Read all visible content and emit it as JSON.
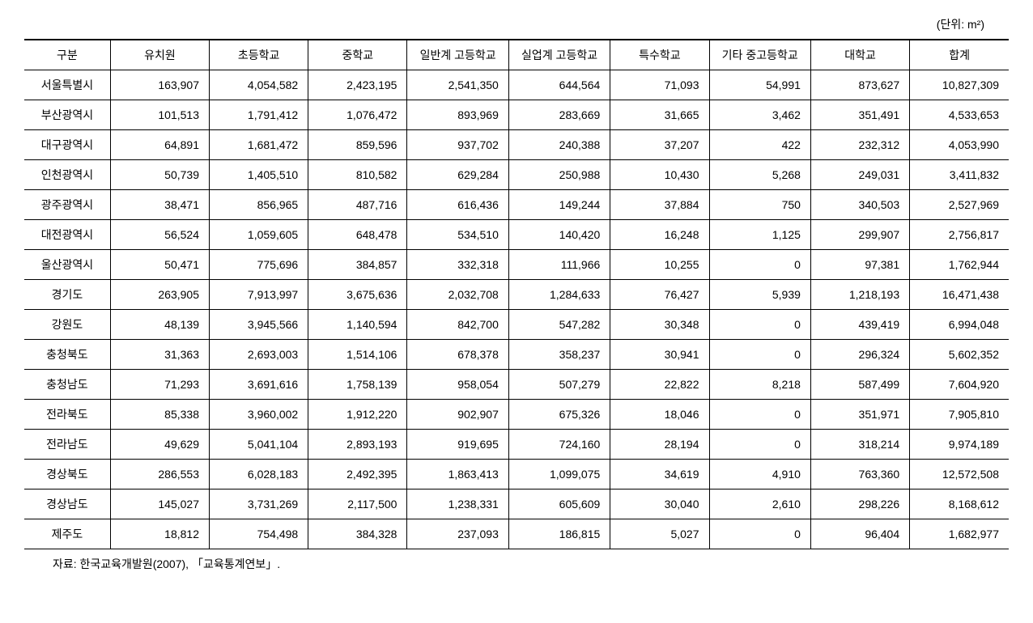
{
  "unit_label": "(단위: m²)",
  "table": {
    "columns": [
      "구분",
      "유치원",
      "초등학교",
      "중학교",
      "일반계 고등학교",
      "실업계 고등학교",
      "특수학교",
      "기타 중고등학교",
      "대학교",
      "합계"
    ],
    "rows": [
      {
        "region": "서울특별시",
        "values": [
          "163,907",
          "4,054,582",
          "2,423,195",
          "2,541,350",
          "644,564",
          "71,093",
          "54,991",
          "873,627",
          "10,827,309"
        ]
      },
      {
        "region": "부산광역시",
        "values": [
          "101,513",
          "1,791,412",
          "1,076,472",
          "893,969",
          "283,669",
          "31,665",
          "3,462",
          "351,491",
          "4,533,653"
        ]
      },
      {
        "region": "대구광역시",
        "values": [
          "64,891",
          "1,681,472",
          "859,596",
          "937,702",
          "240,388",
          "37,207",
          "422",
          "232,312",
          "4,053,990"
        ]
      },
      {
        "region": "인천광역시",
        "values": [
          "50,739",
          "1,405,510",
          "810,582",
          "629,284",
          "250,988",
          "10,430",
          "5,268",
          "249,031",
          "3,411,832"
        ]
      },
      {
        "region": "광주광역시",
        "values": [
          "38,471",
          "856,965",
          "487,716",
          "616,436",
          "149,244",
          "37,884",
          "750",
          "340,503",
          "2,527,969"
        ]
      },
      {
        "region": "대전광역시",
        "values": [
          "56,524",
          "1,059,605",
          "648,478",
          "534,510",
          "140,420",
          "16,248",
          "1,125",
          "299,907",
          "2,756,817"
        ]
      },
      {
        "region": "울산광역시",
        "values": [
          "50,471",
          "775,696",
          "384,857",
          "332,318",
          "111,966",
          "10,255",
          "0",
          "97,381",
          "1,762,944"
        ]
      },
      {
        "region": "경기도",
        "values": [
          "263,905",
          "7,913,997",
          "3,675,636",
          "2,032,708",
          "1,284,633",
          "76,427",
          "5,939",
          "1,218,193",
          "16,471,438"
        ]
      },
      {
        "region": "강원도",
        "values": [
          "48,139",
          "3,945,566",
          "1,140,594",
          "842,700",
          "547,282",
          "30,348",
          "0",
          "439,419",
          "6,994,048"
        ]
      },
      {
        "region": "충청북도",
        "values": [
          "31,363",
          "2,693,003",
          "1,514,106",
          "678,378",
          "358,237",
          "30,941",
          "0",
          "296,324",
          "5,602,352"
        ]
      },
      {
        "region": "충청남도",
        "values": [
          "71,293",
          "3,691,616",
          "1,758,139",
          "958,054",
          "507,279",
          "22,822",
          "8,218",
          "587,499",
          "7,604,920"
        ]
      },
      {
        "region": "전라북도",
        "values": [
          "85,338",
          "3,960,002",
          "1,912,220",
          "902,907",
          "675,326",
          "18,046",
          "0",
          "351,971",
          "7,905,810"
        ]
      },
      {
        "region": "전라남도",
        "values": [
          "49,629",
          "5,041,104",
          "2,893,193",
          "919,695",
          "724,160",
          "28,194",
          "0",
          "318,214",
          "9,974,189"
        ]
      },
      {
        "region": "경상북도",
        "values": [
          "286,553",
          "6,028,183",
          "2,492,395",
          "1,863,413",
          "1,099,075",
          "34,619",
          "4,910",
          "763,360",
          "12,572,508"
        ]
      },
      {
        "region": "경상남도",
        "values": [
          "145,027",
          "3,731,269",
          "2,117,500",
          "1,238,331",
          "605,609",
          "30,040",
          "2,610",
          "298,226",
          "8,168,612"
        ]
      },
      {
        "region": "제주도",
        "values": [
          "18,812",
          "754,498",
          "384,328",
          "237,093",
          "186,815",
          "5,027",
          "0",
          "96,404",
          "1,682,977"
        ]
      }
    ]
  },
  "source": "자료: 한국교육개발원(2007), 「교육통계연보」.",
  "styling": {
    "background_color": "#ffffff",
    "text_color": "#000000",
    "border_color": "#000000",
    "font_family": "Malgun Gothic",
    "font_size_body": 14,
    "border_top_width": 2,
    "border_bottom_width": 1.5,
    "header_align": "center",
    "region_col_align": "center",
    "number_col_align": "right"
  }
}
